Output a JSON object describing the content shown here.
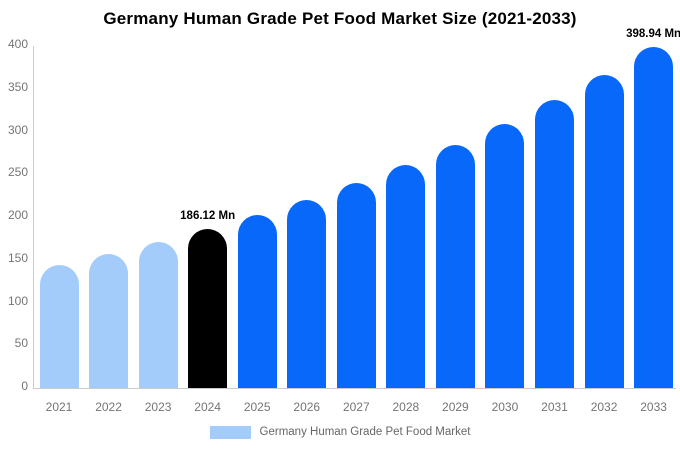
{
  "chart_data": {
    "type": "bar",
    "title": "Germany Human Grade Pet Food Market Size (2021-2033)",
    "unit": "Mn",
    "categories": [
      "2021",
      "2022",
      "2023",
      "2024",
      "2025",
      "2026",
      "2027",
      "2028",
      "2029",
      "2030",
      "2031",
      "2032",
      "2033"
    ],
    "values": [
      144.4,
      157.1,
      171.0,
      186.12,
      202.6,
      220.5,
      240.0,
      261.2,
      284.3,
      309.4,
      336.7,
      366.5,
      398.94
    ],
    "bar_colors": [
      "#a3ccfa",
      "#a3ccfa",
      "#a3ccfa",
      "#000000",
      "#0768fa",
      "#0768fa",
      "#0768fa",
      "#0768fa",
      "#0768fa",
      "#0768fa",
      "#0768fa",
      "#0768fa",
      "#0768fa"
    ],
    "data_labels": {
      "2024": "186.12 Mn",
      "2033": "398.94 Mn"
    },
    "y_ticks": [
      0,
      50,
      100,
      150,
      200,
      250,
      300,
      350,
      400
    ],
    "ylim": [
      0,
      400
    ],
    "xlabel": "",
    "ylabel": "",
    "grid": false,
    "legend_position": "bottom",
    "legend": [
      {
        "label": "Germany Human Grade Pet Food Market",
        "color": "#a3ccfa"
      }
    ],
    "palette": {
      "historical_bar": "#a3ccfa",
      "current_year_bar": "#000000",
      "forecast_bar": "#0768fa"
    }
  }
}
